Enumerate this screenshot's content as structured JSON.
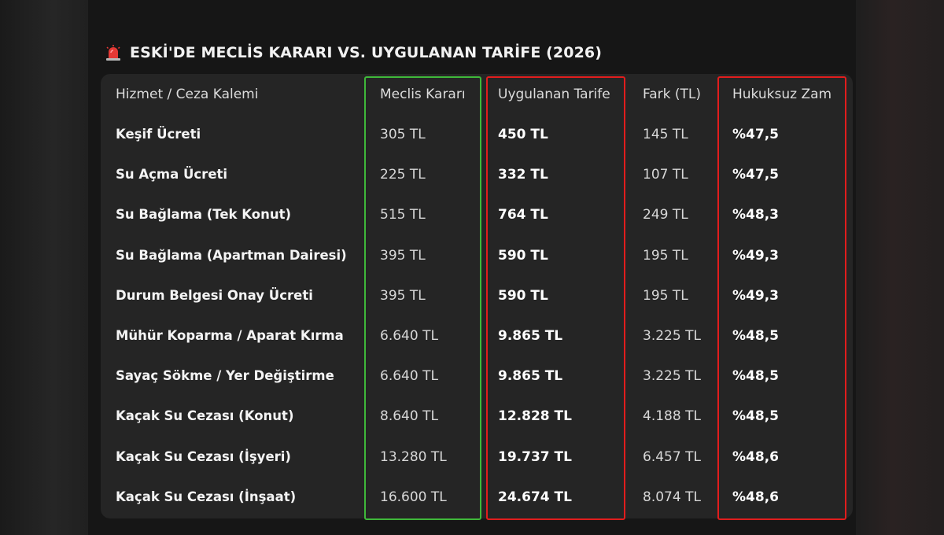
{
  "title": "ESKİ'DE MECLİS KARARI VS. UYGULANAN TARİFE (2026)",
  "title_icon": "siren-icon",
  "colors": {
    "green_highlight": "#3fb83a",
    "red_highlight": "#e11d1d"
  },
  "table": {
    "headers": [
      "Hizmet / Ceza Kalemi",
      "Meclis Kararı",
      "Uygulanan Tarife",
      "Fark (TL)",
      "Hukuksuz Zam"
    ],
    "rows": [
      [
        "Keşif Ücreti",
        "305 TL",
        "450 TL",
        "145 TL",
        "%47,5"
      ],
      [
        "Su Açma Ücreti",
        "225 TL",
        "332 TL",
        "107 TL",
        "%47,5"
      ],
      [
        "Su Bağlama (Tek Konut)",
        "515 TL",
        "764 TL",
        "249 TL",
        "%48,3"
      ],
      [
        "Su Bağlama (Apartman Dairesi)",
        "395 TL",
        "590 TL",
        "195 TL",
        "%49,3"
      ],
      [
        "Durum Belgesi Onay Ücreti",
        "395 TL",
        "590 TL",
        "195 TL",
        "%49,3"
      ],
      [
        "Mühür Koparma / Aparat Kırma",
        "6.640 TL",
        "9.865 TL",
        "3.225 TL",
        "%48,5"
      ],
      [
        "Sayaç Sökme / Yer Değiştirme",
        "6.640 TL",
        "9.865 TL",
        "3.225 TL",
        "%48,5"
      ],
      [
        "Kaçak Su Cezası (Konut)",
        "8.640 TL",
        "12.828 TL",
        "4.188 TL",
        "%48,5"
      ],
      [
        "Kaçak Su Cezası (İşyeri)",
        "13.280 TL",
        "19.737 TL",
        "6.457 TL",
        "%48,6"
      ],
      [
        "Kaçak Su Cezası (İnşaat)",
        "16.600 TL",
        "24.674 TL",
        "8.074 TL",
        "%48,6"
      ]
    ]
  }
}
